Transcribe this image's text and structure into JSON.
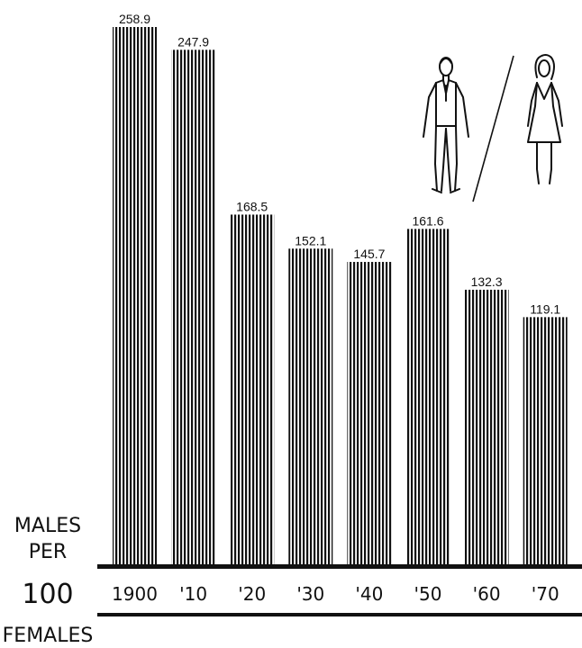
{
  "chart_data": {
    "type": "bar",
    "categories": [
      "1900",
      "'10",
      "'20",
      "'30",
      "'40",
      "'50",
      "'60",
      "'70"
    ],
    "values": [
      258.9,
      247.9,
      168.5,
      152.1,
      145.7,
      161.6,
      132.3,
      119.1
    ],
    "value_labels": [
      "258.9",
      "247.9",
      "168.5",
      "152.1",
      "145.7",
      "161.6",
      "132.3",
      "119.1"
    ],
    "ylabel_lines": [
      "MALES",
      "PER",
      "100",
      "FEMALES"
    ],
    "ylim": [
      0,
      270
    ],
    "grid": false,
    "legend": "none",
    "bar_style": "vertical-hatched",
    "colors": {
      "bars": "#111111",
      "axis": "#111111",
      "background": "#ffffff"
    },
    "illustration": [
      "male-figure-icon",
      "slash-divider",
      "female-figure-icon"
    ]
  }
}
